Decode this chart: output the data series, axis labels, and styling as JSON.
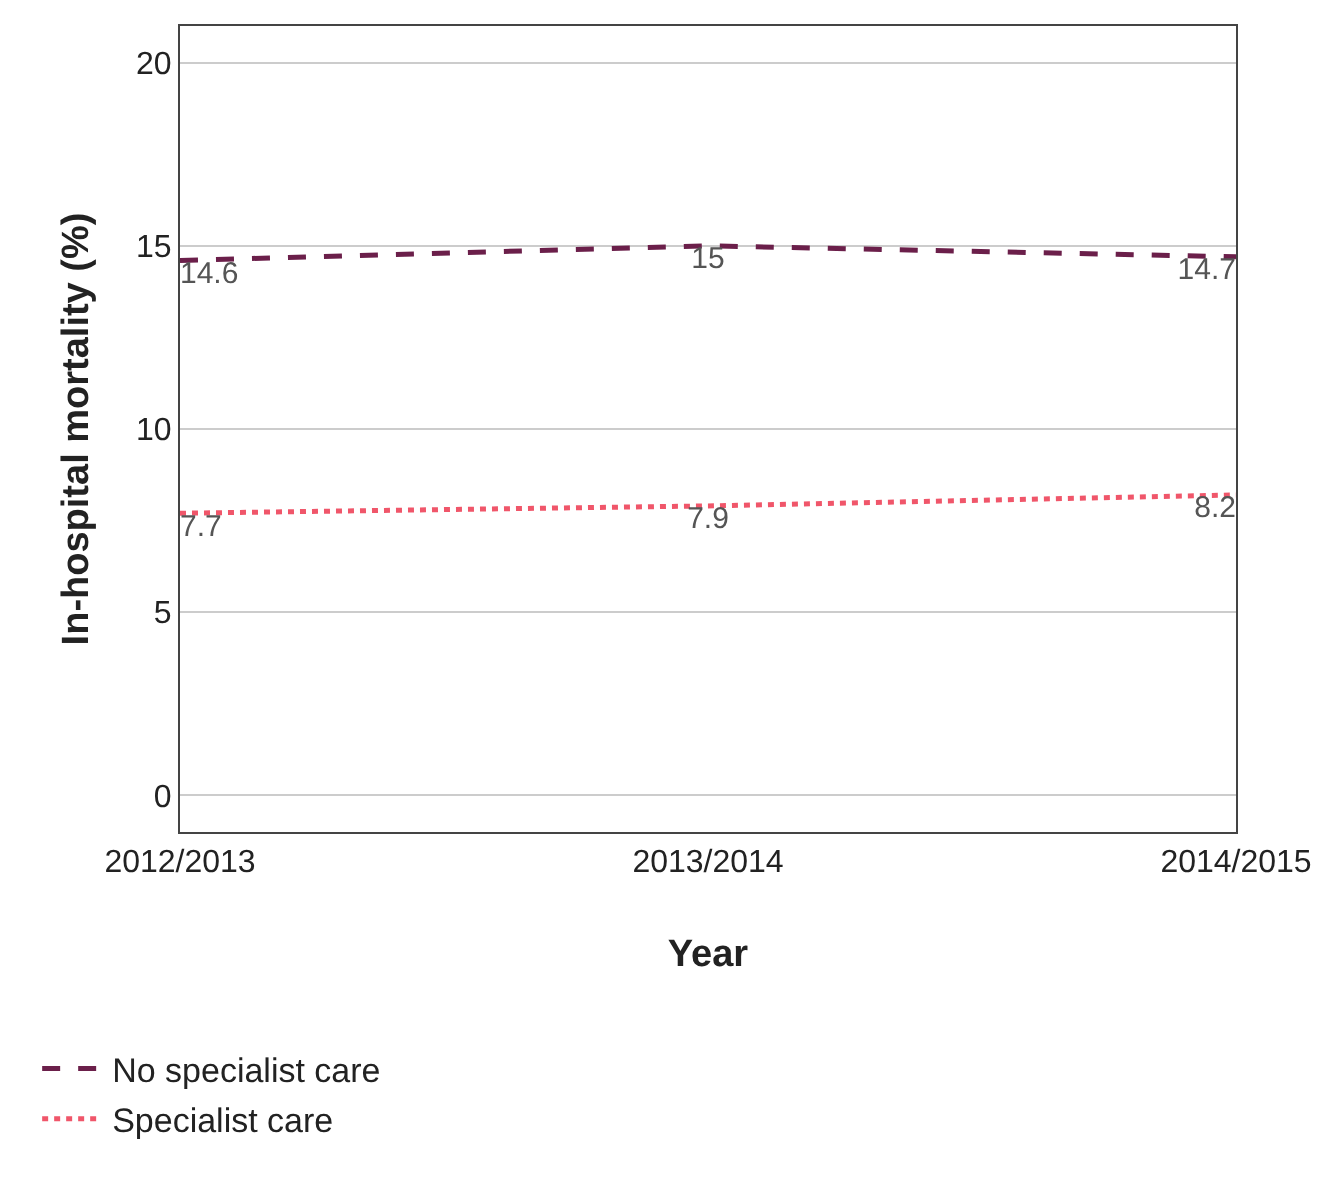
{
  "chart_data": {
    "type": "line",
    "xlabel": "Year",
    "ylabel": "In-hospital mortality (%)",
    "categories": [
      "2012/2013",
      "2013/2014",
      "2014/2015"
    ],
    "series": [
      {
        "name": "No specialist care",
        "color": "#6b1f4a",
        "values": [
          14.6,
          15,
          14.7
        ],
        "line_style": "dashed"
      },
      {
        "name": "Specialist care",
        "color": "#f0566a",
        "values": [
          7.7,
          7.9,
          8.2
        ],
        "line_style": "dotted"
      }
    ],
    "ylim": [
      -1,
      21
    ],
    "yticks": [
      0,
      5,
      10,
      15,
      20
    ],
    "grid": "y",
    "legend": "bottom left",
    "data_labels": true,
    "marker": "none"
  }
}
